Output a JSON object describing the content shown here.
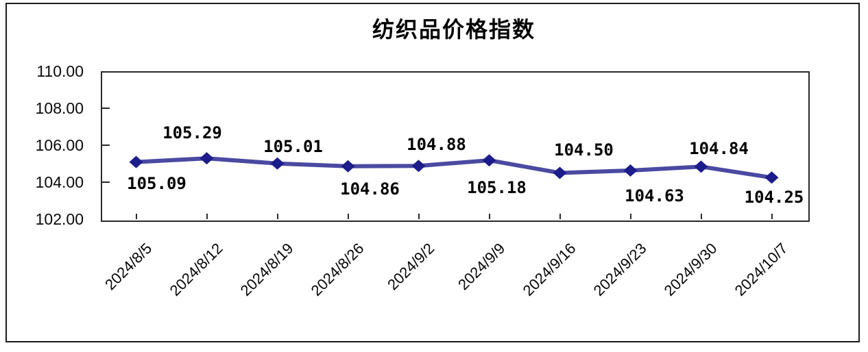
{
  "title": "纺织品价格指数",
  "chart_data": {
    "type": "line",
    "title": "纺织品价格指数",
    "categories": [
      "2024/8/5",
      "2024/8/12",
      "2024/8/19",
      "2024/8/26",
      "2024/9/2",
      "2024/9/9",
      "2024/9/16",
      "2024/9/23",
      "2024/9/30",
      "2024/10/7"
    ],
    "values": [
      105.09,
      105.29,
      105.01,
      104.86,
      104.88,
      105.18,
      104.5,
      104.63,
      104.84,
      104.25
    ],
    "data_labels": [
      "105.09",
      "105.29",
      "105.01",
      "104.86",
      "104.88",
      "105.18",
      "104.50",
      "104.63",
      "104.84",
      "104.25"
    ],
    "label_side": [
      "below",
      "above",
      "above",
      "below",
      "above",
      "below",
      "above",
      "below",
      "above",
      "below"
    ],
    "xlabel": "",
    "ylabel": "",
    "ylim": [
      102,
      110
    ],
    "ytick_values": [
      110,
      108,
      106,
      104,
      102
    ],
    "ytick_labels": [
      "110.00",
      "108.00",
      "106.00",
      "104.00",
      "102.00"
    ],
    "grid": "off",
    "legend": "none",
    "colors": {
      "line": "#4a4aa2",
      "marker": "#1c1c8a",
      "axis": "#2a2a2a",
      "text": "#000000"
    }
  }
}
